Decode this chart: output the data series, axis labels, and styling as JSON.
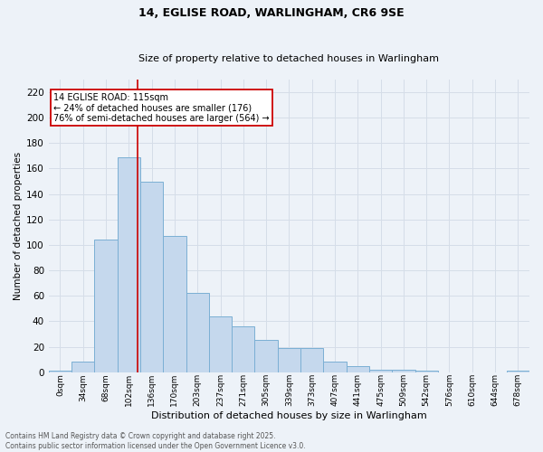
{
  "title1": "14, EGLISE ROAD, WARLINGHAM, CR6 9SE",
  "title2": "Size of property relative to detached houses in Warlingham",
  "xlabel": "Distribution of detached houses by size in Warlingham",
  "ylabel": "Number of detached properties",
  "bar_labels": [
    "0sqm",
    "34sqm",
    "68sqm",
    "102sqm",
    "136sqm",
    "170sqm",
    "203sqm",
    "237sqm",
    "271sqm",
    "305sqm",
    "339sqm",
    "373sqm",
    "407sqm",
    "441sqm",
    "475sqm",
    "509sqm",
    "542sqm",
    "576sqm",
    "610sqm",
    "644sqm",
    "678sqm"
  ],
  "bar_values": [
    1,
    8,
    104,
    169,
    150,
    107,
    62,
    44,
    36,
    25,
    19,
    19,
    8,
    5,
    2,
    2,
    1,
    0,
    0,
    0,
    1
  ],
  "bar_color": "#c5d8ed",
  "bar_edge_color": "#7bafd4",
  "grid_color": "#d5dde8",
  "background_color": "#edf2f8",
  "vline_x": 3.4,
  "vline_color": "#cc0000",
  "annotation_text": "14 EGLISE ROAD: 115sqm\n← 24% of detached houses are smaller (176)\n76% of semi-detached houses are larger (564) →",
  "annotation_box_color": "#ffffff",
  "annotation_border_color": "#cc0000",
  "footer_line1": "Contains HM Land Registry data © Crown copyright and database right 2025.",
  "footer_line2": "Contains public sector information licensed under the Open Government Licence v3.0.",
  "ylim": [
    0,
    230
  ],
  "yticks": [
    0,
    20,
    40,
    60,
    80,
    100,
    120,
    140,
    160,
    180,
    200,
    220
  ],
  "fig_width": 6.0,
  "fig_height": 5.0,
  "dpi": 100
}
